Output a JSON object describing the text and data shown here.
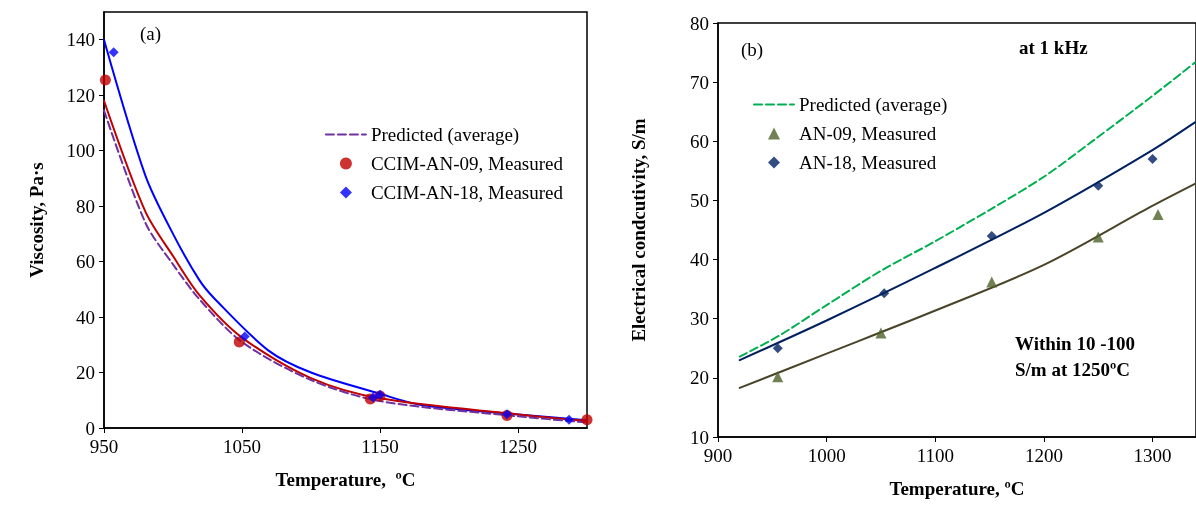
{
  "chart_data": [
    {
      "type": "line",
      "xlabel": "Temperature,  ºC",
      "ylabel": "Viscosity, Pa·s",
      "annotations": [
        "(a)"
      ],
      "xlim": [
        950,
        1300
      ],
      "xticks": [
        950,
        1050,
        1150,
        1250
      ],
      "ylim": [
        0,
        150
      ],
      "yticks": [
        0,
        20,
        40,
        60,
        80,
        100,
        120,
        140
      ],
      "grid": false,
      "legend": "right",
      "series": [
        {
          "type": "line",
          "color": "#0000ff",
          "line_style": "solid",
          "marker": "none",
          "x": [
            950,
            980,
            1000,
            1019,
            1030,
            1069,
            1100,
            1149,
            1180,
            1250,
            1300
          ],
          "values": [
            140,
            91,
            70,
            53.4,
            46.7,
            28,
            20,
            12.5,
            8.3,
            4.9,
            2.8
          ]
        },
        {
          "type": "line",
          "color": "#c00000",
          "line_style": "solid",
          "marker": "none",
          "x": [
            950,
            980,
            1000,
            1019,
            1050,
            1100,
            1150,
            1250,
            1300
          ],
          "values": [
            118,
            78,
            62,
            48,
            32.6,
            18,
            10.7,
            4.9,
            2.5
          ]
        },
        {
          "type": "line",
          "name": "Predicted (average)",
          "color": "#7030a0",
          "line_style": "dashed",
          "marker": "none",
          "x": [
            950,
            980,
            1000,
            1019,
            1050,
            1100,
            1150,
            1250,
            1300
          ],
          "values": [
            114.5,
            74,
            59,
            46.5,
            31,
            17.3,
            9.7,
            4.2,
            2
          ]
        },
        {
          "type": "scatter",
          "name": "CCIM-AN-09, Measured",
          "color": "#c00000",
          "marker": "circle",
          "x": [
            951,
            1048,
            1143,
            1150,
            1242,
            1300
          ],
          "values": [
            125.5,
            31,
            10.5,
            11.5,
            4.5,
            3
          ]
        },
        {
          "type": "scatter",
          "name": "CCIM-AN-18, Measured",
          "color": "#0000ff",
          "marker": "diamond",
          "x": [
            957,
            1052,
            1145,
            1150,
            1242,
            1287
          ],
          "values": [
            135.5,
            33,
            11,
            12,
            5,
            3
          ]
        }
      ]
    },
    {
      "type": "line",
      "xlabel": "Temperature, ºC",
      "ylabel": "Electrical condcutivity, S/m",
      "annotations": [
        "(b)",
        "at 1 kHz",
        "Within 10 -100\nS/m at 1250ºC"
      ],
      "xlim": [
        900,
        1340
      ],
      "xticks": [
        900,
        1000,
        1100,
        1200,
        1300
      ],
      "ylim": [
        10,
        80
      ],
      "yticks": [
        10,
        20,
        30,
        40,
        50,
        60,
        70,
        80
      ],
      "grid": false,
      "legend": "top left",
      "series": [
        {
          "type": "line",
          "name": "Predicted (average)",
          "color": "#00b050",
          "line_style": "dashed",
          "marker": "none",
          "x": [
            920,
            956,
            1000,
            1050,
            1099,
            1151,
            1200,
            1246,
            1298,
            1339
          ],
          "values": [
            23.6,
            27.1,
            32.3,
            38.1,
            43,
            48.5,
            54,
            60.2,
            67.4,
            73.3
          ]
        },
        {
          "type": "line",
          "color": "#002060",
          "line_style": "solid",
          "marker": "none",
          "x": [
            920,
            1000,
            1099,
            1200,
            1298,
            1339
          ],
          "values": [
            23,
            29.7,
            38.5,
            47.9,
            58.3,
            63.2
          ]
        },
        {
          "type": "line",
          "color": "#494429",
          "line_style": "solid",
          "marker": "none",
          "x": [
            920,
            1000,
            1099,
            1200,
            1298,
            1339
          ],
          "values": [
            18.3,
            24.1,
            31.3,
            39.1,
            48.9,
            52.8
          ]
        },
        {
          "type": "scatter",
          "name": "AN-09, Measured",
          "color": "#4f6228",
          "marker": "triangle",
          "x": [
            955,
            1050,
            1152,
            1250,
            1305
          ],
          "values": [
            20.2,
            27.6,
            36.2,
            43.8,
            47.6
          ]
        },
        {
          "type": "scatter",
          "name": "AN-18, Measured",
          "color": "#002060",
          "marker": "diamond",
          "x": [
            955,
            1053,
            1152,
            1250,
            1300
          ],
          "values": [
            25,
            34.3,
            44,
            52.5,
            57
          ]
        }
      ]
    }
  ]
}
